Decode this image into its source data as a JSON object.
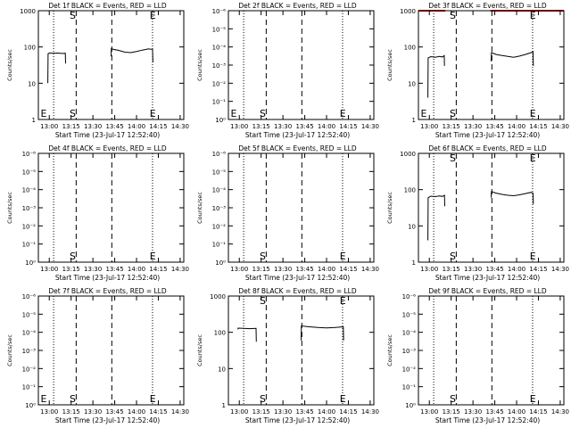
{
  "common": {
    "xlabel": "Start Time (23-Jul-17 12:52:40)",
    "ylabel": "Counts/sec",
    "x_ticks": [
      "13:00",
      "13:15",
      "13:30",
      "13:45",
      "14:00",
      "14:15",
      "14:30"
    ],
    "tick_minutes": [
      0,
      15,
      30,
      45,
      60,
      75,
      90
    ],
    "x_range_minutes_after_13_00": [
      -7.5,
      92.5
    ],
    "log_scale_y": true,
    "colors": {
      "events": "#000000",
      "lld": "#cc0000"
    }
  },
  "chart_data": [
    {
      "type": "line",
      "title": "Det 1f BLACK = Events, RED = LLD",
      "ylim": [
        1,
        1000
      ],
      "y_ticks": [
        "1",
        "10",
        "100",
        "1000"
      ],
      "vlines_dotted": [
        3,
        71
      ],
      "vlines_dashed": [
        18.5,
        43
      ],
      "markers": [
        {
          "text": "E",
          "at": -6
        },
        {
          "text": "S",
          "at": 14
        },
        {
          "text": "E",
          "at": 69
        }
      ],
      "series": [
        {
          "color": "events",
          "segments": [
            {
              "x": [
                -1,
                -0.8,
                0,
                3,
                6,
                9,
                11,
                11.2
              ],
              "y": [
                10,
                65,
                68,
                67,
                68,
                66,
                67,
                35
              ]
            },
            {
              "x": [
                42.5,
                42.7,
                44,
                48,
                52,
                56,
                60,
                64,
                68,
                71,
                71.3
              ],
              "y": [
                55,
                90,
                86,
                80,
                72,
                70,
                75,
                82,
                88,
                86,
                38
              ]
            }
          ]
        }
      ]
    },
    {
      "type": "line",
      "title": "Det 2f BLACK = Events, RED = LLD",
      "ylim": [
        1e-06,
        1
      ],
      "y_ticks": [
        "10⁰",
        "10⁻¹",
        "10⁻²",
        "10⁻³",
        "10⁻⁴",
        "10⁻⁵",
        "10⁻⁶"
      ],
      "vlines_dotted": [
        3,
        71
      ],
      "vlines_dashed": [
        18.5,
        43
      ],
      "markers": [
        {
          "text": "E",
          "at": -6
        },
        {
          "text": "S",
          "at": 14
        },
        {
          "text": "E",
          "at": 69
        }
      ],
      "series": []
    },
    {
      "type": "line",
      "title": "Det 3f BLACK = Events, RED = LLD",
      "ylim": [
        1,
        1000
      ],
      "y_ticks": [
        "1",
        "10",
        "100",
        "1000"
      ],
      "vlines_dotted": [
        3,
        71
      ],
      "vlines_dashed": [
        18.5,
        43
      ],
      "markers": [
        {
          "text": "E",
          "at": -6
        },
        {
          "text": "S",
          "at": 14
        },
        {
          "text": "E",
          "at": 69
        }
      ],
      "series": [
        {
          "color": "events",
          "segments": [
            {
              "x": [
                -1,
                -0.8,
                1,
                4,
                7,
                9,
                10.2,
                10.4
              ],
              "y": [
                4,
                50,
                54,
                52,
                55,
                53,
                58,
                30
              ]
            },
            {
              "x": [
                42.5,
                42.7,
                46,
                50,
                54,
                58,
                62,
                66,
                70,
                71.3,
                71.5
              ],
              "y": [
                40,
                70,
                62,
                58,
                55,
                52,
                56,
                62,
                70,
                75,
                30
              ]
            }
          ]
        },
        {
          "color": "lld",
          "segments": [
            {
              "x": [
                -7.5,
                11
              ],
              "y": [
                1000,
                1000
              ]
            },
            {
              "x": [
                42,
                92.5
              ],
              "y": [
                1000,
                1000
              ]
            }
          ]
        }
      ]
    },
    {
      "type": "line",
      "title": "Det 4f BLACK = Events, RED = LLD",
      "ylim": [
        1e-06,
        1
      ],
      "y_ticks": [
        "10⁰",
        "10⁻¹",
        "10⁻²",
        "10⁻³",
        "10⁻⁴",
        "10⁻⁵",
        "10⁻⁶"
      ],
      "vlines_dotted": [
        3,
        71
      ],
      "vlines_dashed": [
        18.5,
        43
      ],
      "markers": [
        {
          "text": "S",
          "at": 14
        },
        {
          "text": "E",
          "at": 69
        }
      ],
      "series": []
    },
    {
      "type": "line",
      "title": "Det 5f BLACK = Events, RED = LLD",
      "ylim": [
        1e-06,
        1
      ],
      "y_ticks": [
        "10⁰",
        "10⁻¹",
        "10⁻²",
        "10⁻³",
        "10⁻⁴",
        "10⁻⁵",
        "10⁻⁶"
      ],
      "vlines_dotted": [
        3,
        71
      ],
      "vlines_dashed": [
        18.5,
        43
      ],
      "markers": [
        {
          "text": "S",
          "at": 14
        },
        {
          "text": "E",
          "at": 69
        }
      ],
      "series": []
    },
    {
      "type": "line",
      "title": "Det 6f BLACK = Events, RED = LLD",
      "ylim": [
        1,
        1000
      ],
      "y_ticks": [
        "1",
        "10",
        "100",
        "1000"
      ],
      "vlines_dotted": [
        3,
        71
      ],
      "vlines_dashed": [
        18.5,
        43
      ],
      "markers": [
        {
          "text": "S",
          "at": 14
        },
        {
          "text": "E",
          "at": 69
        }
      ],
      "series": [
        {
          "color": "events",
          "segments": [
            {
              "x": [
                -1,
                -0.8,
                1,
                4,
                7,
                9,
                10.4,
                10.6
              ],
              "y": [
                4,
                60,
                66,
                64,
                67,
                65,
                70,
                35
              ]
            },
            {
              "x": [
                42.5,
                42.7,
                46,
                50,
                54,
                58,
                62,
                66,
                70,
                71.3,
                71.5
              ],
              "y": [
                60,
                88,
                80,
                74,
                70,
                68,
                72,
                78,
                84,
                80,
                40
              ]
            }
          ]
        }
      ]
    },
    {
      "type": "line",
      "title": "Det 7f BLACK = Events, RED = LLD",
      "ylim": [
        1e-06,
        1
      ],
      "y_ticks": [
        "10⁰",
        "10⁻¹",
        "10⁻²",
        "10⁻³",
        "10⁻⁴",
        "10⁻⁵",
        "10⁻⁶"
      ],
      "vlines_dotted": [
        3,
        71
      ],
      "vlines_dashed": [
        18.5,
        43
      ],
      "markers": [
        {
          "text": "E",
          "at": -6
        },
        {
          "text": "S",
          "at": 14
        },
        {
          "text": "E",
          "at": 69
        }
      ],
      "series": []
    },
    {
      "type": "line",
      "title": "Det 8f BLACK = Events, RED = LLD",
      "ylim": [
        1,
        1000
      ],
      "y_ticks": [
        "1",
        "10",
        "100",
        "1000"
      ],
      "vlines_dotted": [
        3,
        71
      ],
      "vlines_dashed": [
        18.5,
        43
      ],
      "markers": [
        {
          "text": "S",
          "at": 14
        },
        {
          "text": "E",
          "at": 69
        }
      ],
      "series": [
        {
          "color": "events",
          "segments": [
            {
              "x": [
                -1,
                -0.8,
                3,
                7,
                10,
                11.5,
                11.7
              ],
              "y": [
                120,
                130,
                128,
                126,
                127,
                128,
                55
              ]
            },
            {
              "x": [
                42.5,
                42.7,
                46,
                50,
                55,
                60,
                65,
                70,
                71.5,
                71.7
              ],
              "y": [
                60,
                150,
                145,
                140,
                135,
                132,
                135,
                140,
                142,
                60
              ]
            }
          ]
        }
      ]
    },
    {
      "type": "line",
      "title": "Det 9f BLACK = Events, RED = LLD",
      "ylim": [
        1e-06,
        1
      ],
      "y_ticks": [
        "10⁰",
        "10⁻¹",
        "10⁻²",
        "10⁻³",
        "10⁻⁴",
        "10⁻⁵",
        "10⁻⁶"
      ],
      "vlines_dotted": [
        3,
        71
      ],
      "vlines_dashed": [
        18.5,
        43
      ],
      "markers": [
        {
          "text": "S",
          "at": 14
        },
        {
          "text": "E",
          "at": 69
        }
      ],
      "series": []
    }
  ]
}
